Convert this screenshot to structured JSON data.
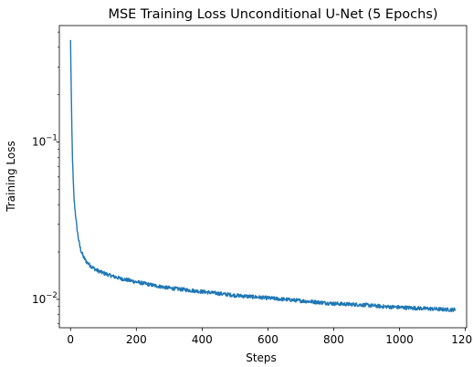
{
  "chart_data": {
    "type": "line",
    "title": "MSE Training Loss Unconditional U-Net (5 Epochs)",
    "xlabel": "Steps",
    "ylabel": "Training Loss",
    "xlim": [
      -34,
      1204
    ],
    "ylim": [
      0.0066,
      0.55
    ],
    "yscale": "log",
    "grid": false,
    "x_ticks": [
      {
        "value": 0,
        "label": "0"
      },
      {
        "value": 200,
        "label": "200"
      },
      {
        "value": 400,
        "label": "400"
      },
      {
        "value": 600,
        "label": "600"
      },
      {
        "value": 800,
        "label": "800"
      },
      {
        "value": 1000,
        "label": "1000"
      },
      {
        "value": 1200,
        "label": "1200"
      }
    ],
    "y_ticks": [
      {
        "value": 0.1,
        "base": "10",
        "exponent": "−1"
      },
      {
        "value": 0.01,
        "base": "10",
        "exponent": "−2"
      }
    ],
    "series": [
      {
        "color": "#1f77b4",
        "x": [
          0,
          2,
          4,
          6,
          8,
          10,
          12,
          15,
          18,
          22,
          26,
          30,
          35,
          40,
          45,
          50,
          60,
          70,
          80,
          100,
          120,
          150,
          200,
          250,
          300,
          350,
          400,
          450,
          500,
          550,
          600,
          650,
          700,
          750,
          800,
          850,
          900,
          950,
          1000,
          1050,
          1100,
          1150,
          1170
        ],
        "y": [
          0.44,
          0.22,
          0.12,
          0.078,
          0.058,
          0.046,
          0.04,
          0.035,
          0.03,
          0.026,
          0.023,
          0.021,
          0.0195,
          0.0185,
          0.0178,
          0.0172,
          0.0164,
          0.0158,
          0.0153,
          0.0147,
          0.0142,
          0.0136,
          0.0129,
          0.0123,
          0.0118,
          0.0115,
          0.0112,
          0.0109,
          0.0106,
          0.0104,
          0.0102,
          0.01,
          0.0098,
          0.0096,
          0.0094,
          0.0093,
          0.0092,
          0.009,
          0.0089,
          0.0088,
          0.0087,
          0.0086,
          0.0086
        ]
      }
    ]
  }
}
